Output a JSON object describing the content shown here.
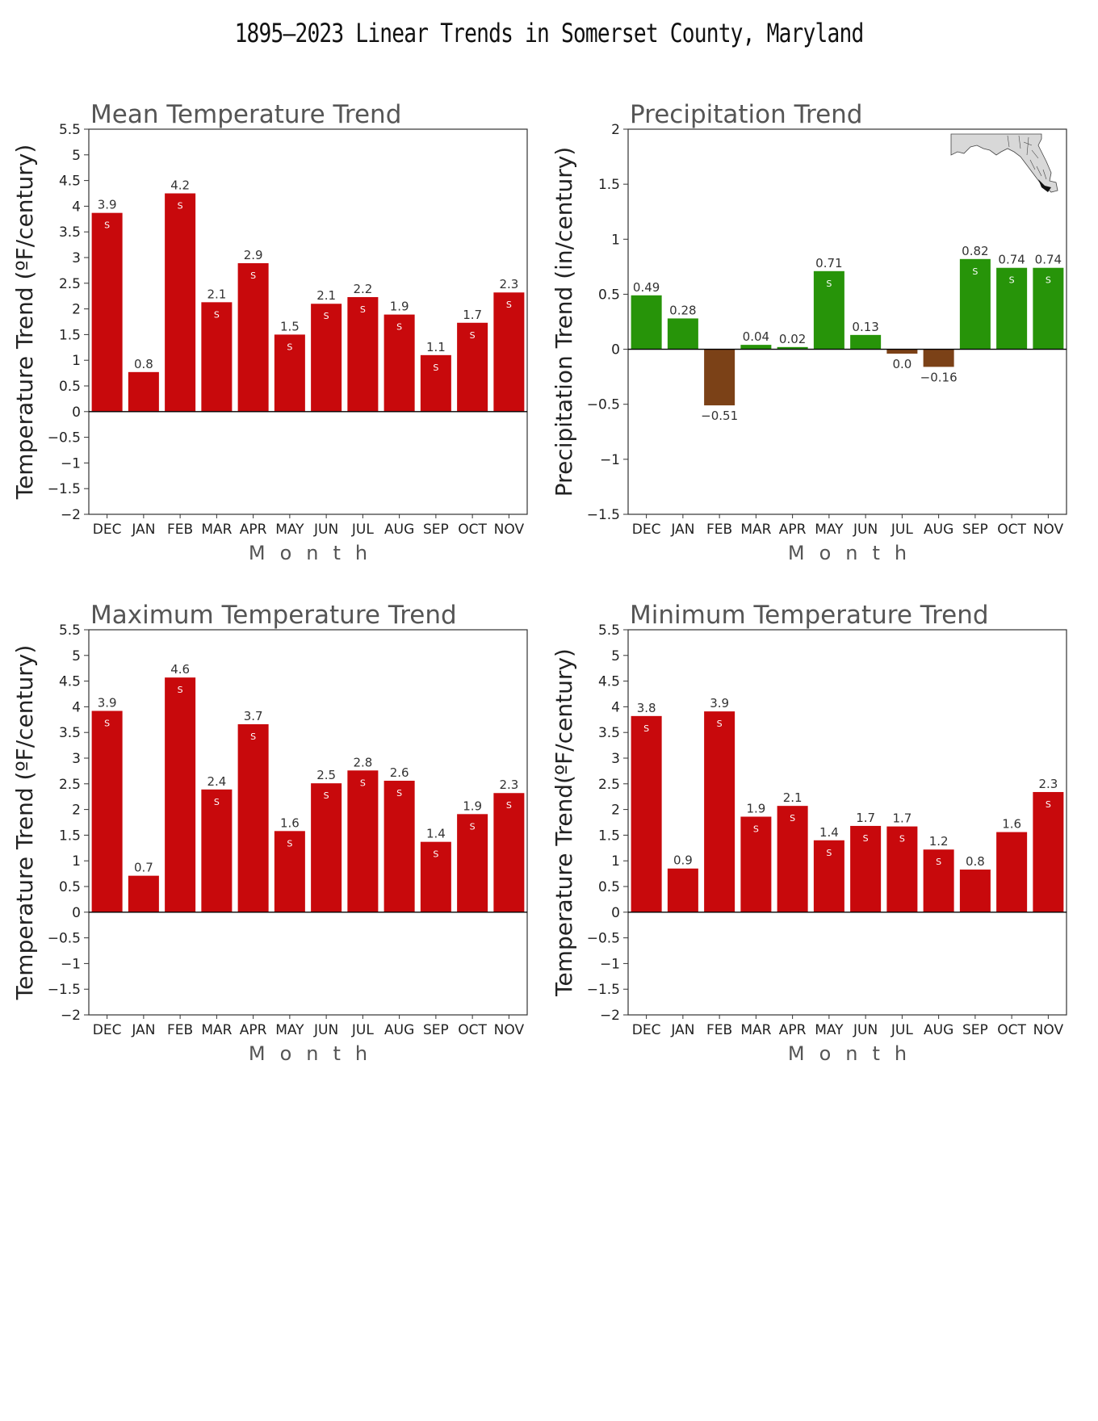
{
  "page_title": "1895–2023 Linear Trends in Somerset County, Maryland",
  "colors": {
    "warm": "#c8090c",
    "wet": "#279409",
    "dry": "#7b4117",
    "axis": "#333333"
  },
  "chart_data": [
    {
      "type": "bar",
      "title": "Mean Temperature Trend",
      "ylabel": "Temperature Trend (ºF/century)",
      "xlabel": "Month",
      "ylim": [
        -2,
        5.5
      ],
      "ystep": 0.5,
      "categories": [
        "DEC",
        "JAN",
        "FEB",
        "MAR",
        "APR",
        "MAY",
        "JUN",
        "JUL",
        "AUG",
        "SEP",
        "OCT",
        "NOV"
      ],
      "values": [
        3.87,
        0.77,
        4.25,
        2.13,
        2.89,
        1.5,
        2.1,
        2.23,
        1.89,
        1.1,
        1.73,
        2.32
      ],
      "value_labels": [
        "3.9",
        "0.8",
        "4.2",
        "2.1",
        "2.9",
        "1.5",
        "2.1",
        "2.2",
        "1.9",
        "1.1",
        "1.7",
        "2.3"
      ],
      "significant": [
        true,
        false,
        true,
        true,
        true,
        true,
        true,
        true,
        true,
        true,
        true,
        true
      ],
      "significance_mark": "S"
    },
    {
      "type": "bar",
      "title": "Precipitation Trend",
      "ylabel": "Precipitation Trend (in/century)",
      "xlabel": "Month",
      "ylim": [
        -1.5,
        2
      ],
      "ystep": 0.5,
      "categories": [
        "DEC",
        "JAN",
        "FEB",
        "MAR",
        "APR",
        "MAY",
        "JUN",
        "JUL",
        "AUG",
        "SEP",
        "OCT",
        "NOV"
      ],
      "values": [
        0.49,
        0.28,
        -0.51,
        0.04,
        0.02,
        0.71,
        0.13,
        -0.04,
        -0.16,
        0.82,
        0.74,
        0.74
      ],
      "value_labels": [
        "0.49",
        "0.28",
        "−0.51",
        "0.04",
        "0.02",
        "0.71",
        "0.13",
        "0.0",
        "−0.16",
        "0.82",
        "0.74",
        "0.74"
      ],
      "significant": [
        false,
        false,
        false,
        false,
        false,
        true,
        false,
        false,
        false,
        true,
        true,
        true
      ],
      "significance_mark": "S",
      "inset": "maryland-map"
    },
    {
      "type": "bar",
      "title": "Maximum Temperature Trend",
      "ylabel": "Temperature Trend (ºF/century)",
      "xlabel": "Month",
      "ylim": [
        -2,
        5.5
      ],
      "ystep": 0.5,
      "categories": [
        "DEC",
        "JAN",
        "FEB",
        "MAR",
        "APR",
        "MAY",
        "JUN",
        "JUL",
        "AUG",
        "SEP",
        "OCT",
        "NOV"
      ],
      "values": [
        3.92,
        0.71,
        4.57,
        2.39,
        3.66,
        1.58,
        2.51,
        2.76,
        2.56,
        1.37,
        1.91,
        2.32
      ],
      "value_labels": [
        "3.9",
        "0.7",
        "4.6",
        "2.4",
        "3.7",
        "1.6",
        "2.5",
        "2.8",
        "2.6",
        "1.4",
        "1.9",
        "2.3"
      ],
      "significant": [
        true,
        false,
        true,
        true,
        true,
        true,
        true,
        true,
        true,
        true,
        true,
        true
      ],
      "significance_mark": "S"
    },
    {
      "type": "bar",
      "title": "Minimum Temperature Trend",
      "ylabel": "Temperature Trend(ºF/century)",
      "xlabel": "Month",
      "ylim": [
        -2,
        5.5
      ],
      "ystep": 0.5,
      "categories": [
        "DEC",
        "JAN",
        "FEB",
        "MAR",
        "APR",
        "MAY",
        "JUN",
        "JUL",
        "AUG",
        "SEP",
        "OCT",
        "NOV"
      ],
      "values": [
        3.82,
        0.85,
        3.91,
        1.86,
        2.07,
        1.4,
        1.68,
        1.67,
        1.22,
        0.83,
        1.56,
        2.34
      ],
      "value_labels": [
        "3.8",
        "0.9",
        "3.9",
        "1.9",
        "2.1",
        "1.4",
        "1.7",
        "1.7",
        "1.2",
        "0.8",
        "1.6",
        "2.3"
      ],
      "significant": [
        true,
        false,
        true,
        true,
        true,
        true,
        true,
        true,
        true,
        false,
        false,
        true
      ],
      "significance_mark": "S"
    }
  ]
}
